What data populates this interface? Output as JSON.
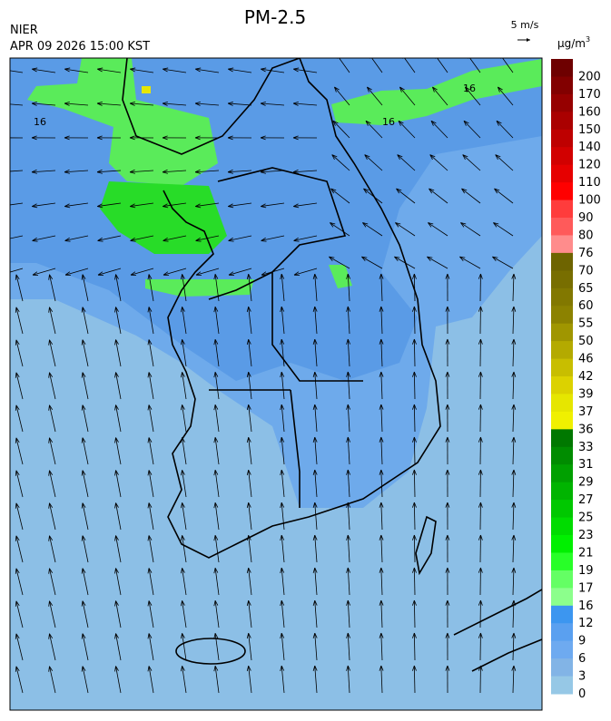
{
  "header": {
    "title": "PM-2.5",
    "agency": "NIER",
    "datetime": "APR 09 2026 15:00 KST",
    "wind_scale": "5 m/s"
  },
  "colorbar": {
    "unit": "μg/m",
    "unit_superscript": "3",
    "labels": [
      "200",
      "170",
      "160",
      "150",
      "140",
      "120",
      "110",
      "100",
      "90",
      "80",
      "76",
      "70",
      "65",
      "60",
      "55",
      "50",
      "46",
      "42",
      "39",
      "37",
      "36",
      "33",
      "31",
      "29",
      "27",
      "25",
      "23",
      "21",
      "19",
      "17",
      "16",
      "12",
      "9",
      "6",
      "3",
      "0"
    ],
    "colors": [
      "#6e0000",
      "#820000",
      "#960000",
      "#aa0000",
      "#be0000",
      "#d20000",
      "#e60000",
      "#ff0000",
      "#ff3c3c",
      "#ff5a5a",
      "#ff8c8c",
      "#6e6400",
      "#786e00",
      "#827800",
      "#8c8200",
      "#a09600",
      "#b4aa00",
      "#c8be00",
      "#dcd200",
      "#e6e600",
      "#f0f000",
      "#007800",
      "#008c00",
      "#00a000",
      "#00b400",
      "#00c800",
      "#00dc00",
      "#00f000",
      "#28ff28",
      "#64ff64",
      "#8cff8c",
      "#3c96f0",
      "#5aa0f0",
      "#6eaaf0",
      "#82b4e6",
      "#96c8e6"
    ]
  },
  "map": {
    "contour_labels": [
      "16",
      "16",
      "16"
    ]
  }
}
